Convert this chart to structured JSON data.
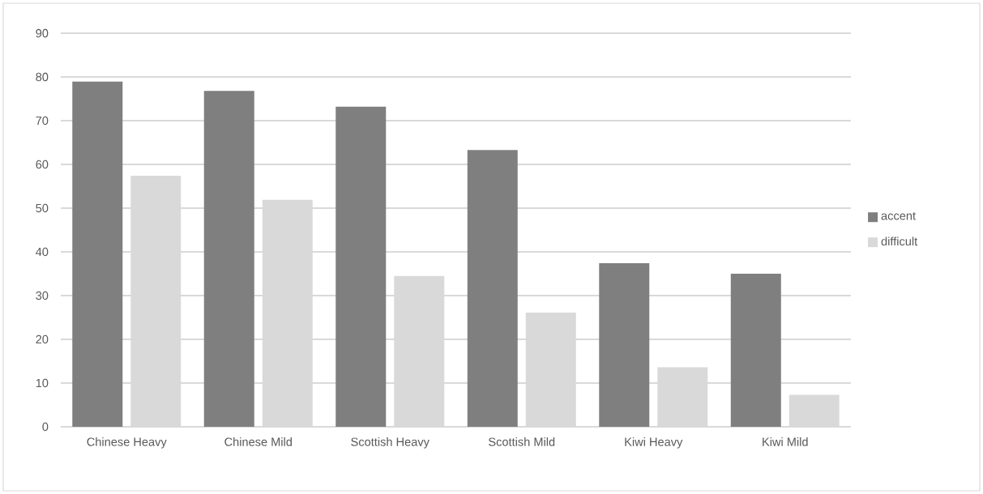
{
  "chart_data": {
    "type": "bar",
    "categories": [
      "Chinese Heavy",
      "Chinese Mild",
      "Scottish Heavy",
      "Scottish Mild",
      "Kiwi Heavy",
      "Kiwi Mild"
    ],
    "series": [
      {
        "name": "accent",
        "color": "#7f7f7f",
        "values": [
          79.0,
          76.8,
          73.2,
          63.3,
          37.4,
          35.0
        ]
      },
      {
        "name": "difficult",
        "color": "#d9d9d9",
        "values": [
          57.4,
          51.9,
          34.5,
          26.1,
          13.6,
          7.3
        ]
      }
    ],
    "ylim": [
      0,
      90
    ],
    "yticks": [
      0,
      10,
      20,
      30,
      40,
      50,
      60,
      70,
      80,
      90
    ],
    "grid": "y",
    "legend": "right"
  }
}
